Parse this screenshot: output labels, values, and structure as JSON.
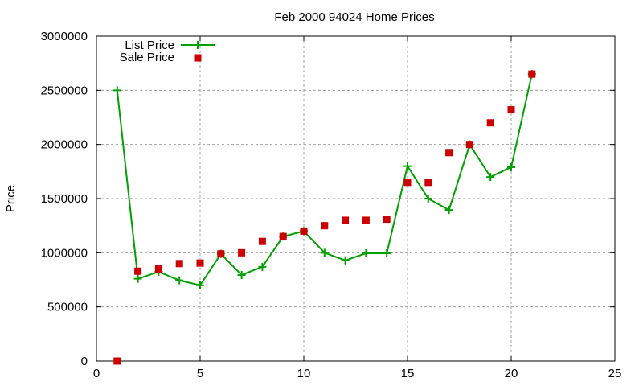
{
  "chart_data": {
    "type": "line",
    "title": "Feb 2000 94024 Home Prices",
    "xlabel": "",
    "ylabel": "Price",
    "xlim": [
      0,
      25
    ],
    "ylim": [
      0,
      3000000
    ],
    "x_ticks": [
      0,
      5,
      10,
      15,
      20,
      25
    ],
    "y_ticks": [
      0,
      500000,
      1000000,
      1500000,
      2000000,
      2500000,
      3000000
    ],
    "grid": true,
    "legend_position": "top-left",
    "x": [
      1,
      2,
      3,
      4,
      5,
      6,
      7,
      8,
      9,
      10,
      11,
      12,
      13,
      14,
      15,
      16,
      17,
      18,
      19,
      20,
      21
    ],
    "series": [
      {
        "name": "List Price",
        "style": "linespoints",
        "color": "#00a000",
        "values": [
          2500000,
          760000,
          825000,
          745000,
          700000,
          990000,
          795000,
          870000,
          1150000,
          1200000,
          1000000,
          930000,
          995000,
          995000,
          1800000,
          1500000,
          1395000,
          2000000,
          1700000,
          1790000,
          2650000
        ]
      },
      {
        "name": "Sale Price",
        "style": "points",
        "color": "#cc0000",
        "values": [
          0,
          830000,
          850000,
          900000,
          905000,
          990000,
          1000000,
          1105000,
          1150000,
          1200000,
          1250000,
          1300000,
          1300000,
          1310000,
          1650000,
          1650000,
          1925000,
          2000000,
          2200000,
          2320000,
          2650000
        ]
      }
    ]
  }
}
